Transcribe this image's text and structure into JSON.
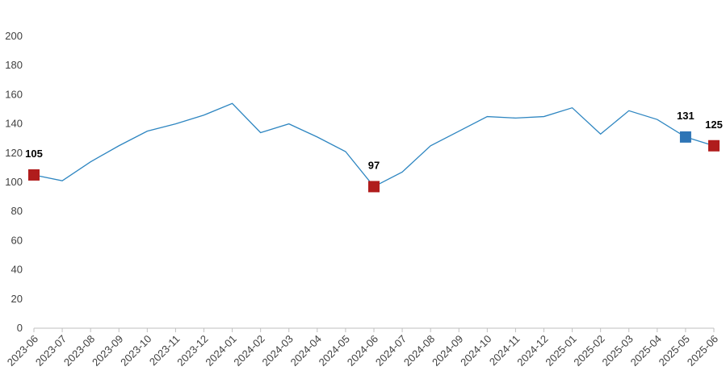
{
  "chart_data": {
    "type": "line",
    "categories": [
      "2023-06",
      "2023-07",
      "2023-08",
      "2023-09",
      "2023-10",
      "2023-11",
      "2023-12",
      "2024-01",
      "2024-02",
      "2024-03",
      "2024-04",
      "2024-05",
      "2024-06",
      "2024-07",
      "2024-08",
      "2024-09",
      "2024-10",
      "2024-11",
      "2024-12",
      "2025-01",
      "2025-02",
      "2025-03",
      "2025-04",
      "2025-05",
      "2025-06"
    ],
    "series": [
      {
        "color": "#2e86c1",
        "values": [
          105,
          101,
          114,
          125,
          135,
          140,
          146,
          154,
          134,
          140,
          131,
          121,
          97,
          107,
          125,
          135,
          145,
          144,
          145,
          151,
          133,
          149,
          143,
          131,
          125
        ],
        "marker_colors": [
          "#b01c1c",
          null,
          null,
          null,
          null,
          null,
          null,
          null,
          null,
          null,
          null,
          null,
          "#b01c1c",
          null,
          null,
          null,
          null,
          null,
          null,
          null,
          null,
          null,
          null,
          "#2e75b6",
          "#b01c1c"
        ]
      }
    ],
    "ylim": [
      0,
      200
    ],
    "yticks": [
      0,
      20,
      40,
      60,
      80,
      100,
      120,
      140,
      160,
      180,
      200
    ],
    "grid": false
  }
}
